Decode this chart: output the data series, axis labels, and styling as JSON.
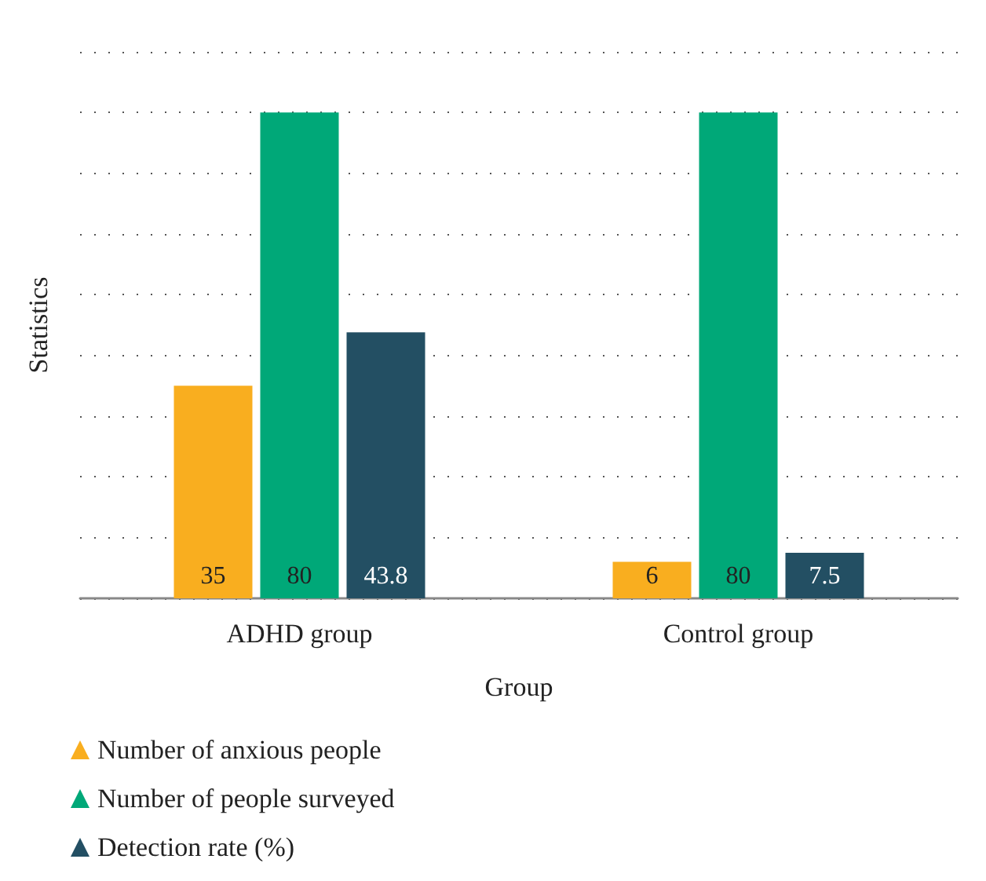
{
  "chart_data": {
    "type": "bar",
    "xlabel": "Group",
    "ylabel": "Statistics",
    "categories": [
      "ADHD group",
      "Control group"
    ],
    "series": [
      {
        "name": "Number of anxious people",
        "color": "#f9ae1f",
        "values": [
          35,
          6
        ]
      },
      {
        "name": "Number of people surveyed",
        "color": "#00a878",
        "values": [
          80,
          80
        ]
      },
      {
        "name": "Detection rate (%)",
        "color": "#234f63",
        "values": [
          43.8,
          7.5
        ]
      }
    ],
    "ylim": [
      0,
      90
    ],
    "yticks": [
      0,
      10,
      20,
      30,
      40,
      50,
      60,
      70,
      80,
      90
    ],
    "tick_labels": "x",
    "grid": "y",
    "data_labels": true,
    "legend": "bottom left",
    "marker": "triangle"
  }
}
